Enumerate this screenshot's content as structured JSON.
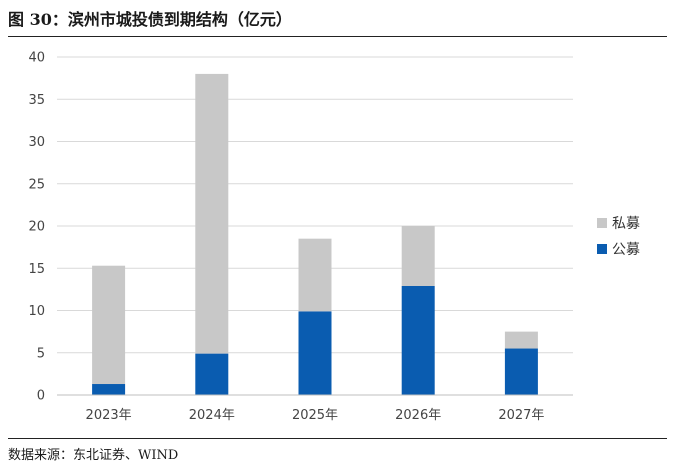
{
  "title": "图 30：滨州市城投债到期结构（亿元）",
  "source": "数据来源：东北证券、WIND",
  "chart_data": {
    "type": "bar",
    "stacked": true,
    "categories": [
      "2023年",
      "2024年",
      "2025年",
      "2026年",
      "2027年"
    ],
    "series": [
      {
        "name": "公募",
        "values": [
          1.3,
          4.9,
          9.9,
          12.9,
          5.5
        ],
        "color": "#0a5cb0"
      },
      {
        "name": "私募",
        "values": [
          14.0,
          33.1,
          8.6,
          7.1,
          2.0
        ],
        "color": "#c8c8c8"
      }
    ],
    "ylim": [
      0,
      40
    ],
    "yticks": [
      0,
      5,
      10,
      15,
      20,
      25,
      30,
      35,
      40
    ],
    "grid": true,
    "legend": "right",
    "legend_order": [
      "私募",
      "公募"
    ]
  }
}
